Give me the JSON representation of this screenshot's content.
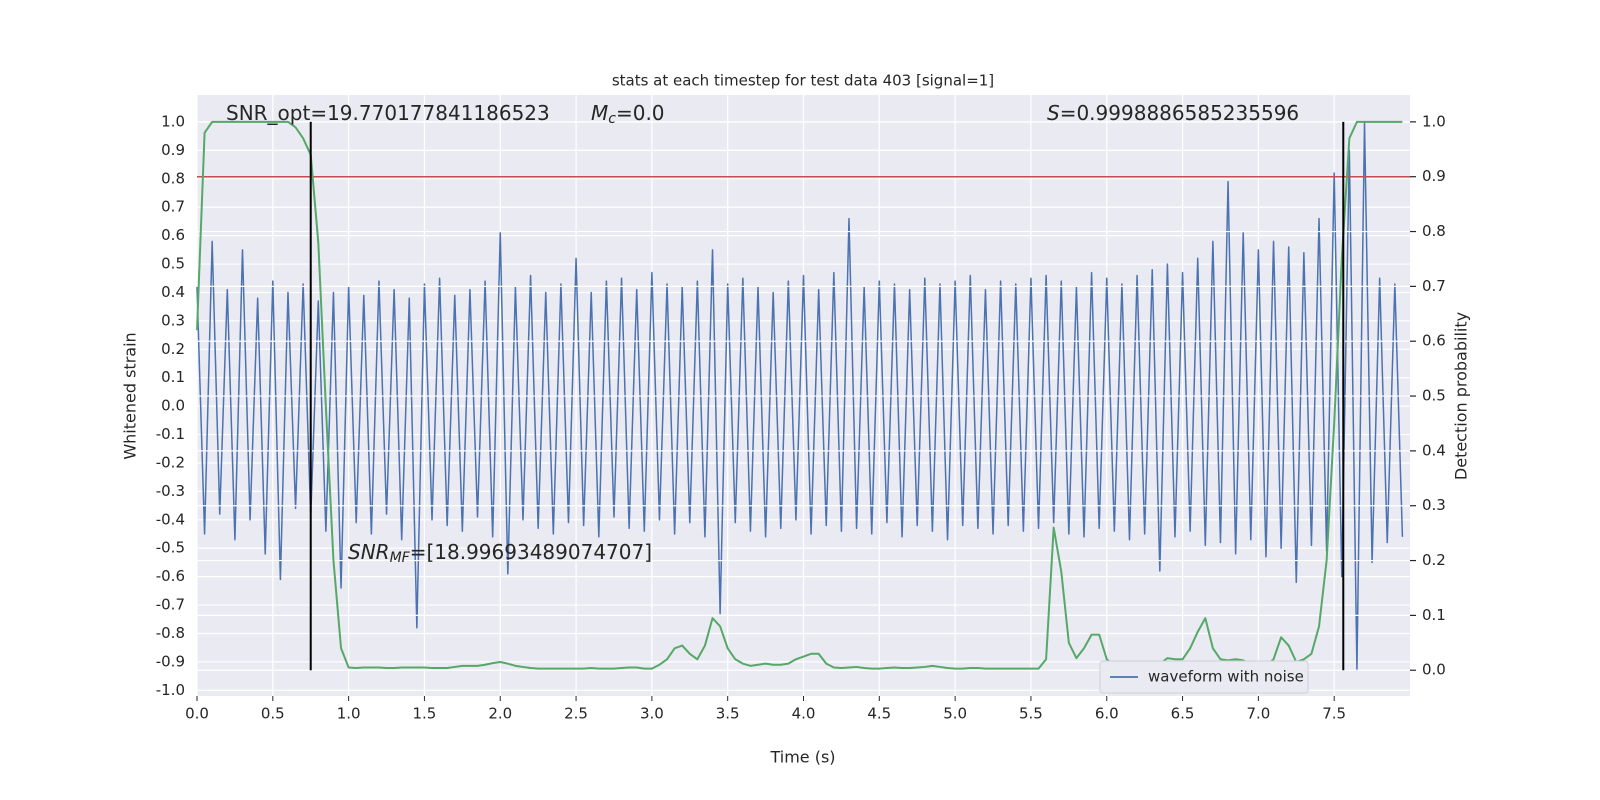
{
  "chart_data": {
    "type": "line",
    "title": "stats at each timestep for test data 403 [signal=1]",
    "xlabel": "Time (s)",
    "ylabel": "Whitened strain",
    "y2label": "Detection probability",
    "xlim": [
      0,
      8.0
    ],
    "ylim": [
      -1.02,
      1.095
    ],
    "y2lim": [
      -0.047,
      1.049
    ],
    "xticks": [
      {
        "value": 0,
        "label": "0.0"
      },
      0.5,
      {
        "value": 1,
        "label": "1.0"
      },
      1.5,
      {
        "value": 2,
        "label": "2.0"
      },
      2.5,
      {
        "value": 3,
        "label": "3.0"
      },
      3.5,
      {
        "value": 4,
        "label": "4.0"
      },
      4.5,
      {
        "value": 5,
        "label": "5.0"
      },
      5.5,
      {
        "value": 6,
        "label": "6.0"
      },
      6.5,
      {
        "value": 7,
        "label": "7.0"
      },
      7.5
    ],
    "yticks": [
      {
        "value": -1,
        "label": "-1.0"
      },
      -0.9,
      -0.8,
      -0.7,
      -0.6,
      -0.5,
      -0.4,
      -0.3,
      -0.2,
      -0.1,
      {
        "value": 0,
        "label": "0.0"
      },
      0.1,
      0.2,
      0.3,
      0.4,
      0.5,
      0.6,
      0.7,
      0.8,
      0.9,
      {
        "value": 1,
        "label": "1.0"
      }
    ],
    "y2ticks": [
      {
        "value": 0,
        "label": "0.0"
      },
      0.1,
      0.2,
      0.3,
      0.4,
      0.5,
      0.6,
      0.7,
      0.8,
      0.9,
      {
        "value": 1,
        "label": "1.0"
      }
    ],
    "grid": true,
    "legend": "lower right",
    "threshold": 0.9,
    "threshold_color": "#c44e52",
    "vlines": [
      0.75,
      7.56
    ],
    "vline_range": [
      0,
      1
    ],
    "annotations": [
      {
        "text": "SNR_opt=19.770177841186523"
      },
      {
        "symbol": "M",
        "sub": "c",
        "text": "=0.0"
      },
      {
        "symbol": "S",
        "text": "=0.9998886585235596"
      },
      {
        "symbol": "SNR",
        "sub": "MF",
        "text": "=[18.99693489074707]"
      }
    ],
    "x": [
      0,
      0.05,
      0.1,
      0.15,
      0.2,
      0.25,
      0.3,
      0.35,
      0.4,
      0.45,
      0.5,
      0.55,
      0.6,
      0.65,
      0.7,
      0.75,
      0.8,
      0.85,
      0.9,
      0.95,
      1,
      1.05,
      1.1,
      1.15,
      1.2,
      1.25,
      1.3,
      1.35,
      1.4,
      1.45,
      1.5,
      1.55,
      1.6,
      1.65,
      1.7,
      1.75,
      1.8,
      1.85,
      1.9,
      1.95,
      2,
      2.05,
      2.1,
      2.15,
      2.2,
      2.25,
      2.3,
      2.35,
      2.4,
      2.45,
      2.5,
      2.55,
      2.6,
      2.65,
      2.7,
      2.75,
      2.8,
      2.85,
      2.9,
      2.95,
      3,
      3.05,
      3.1,
      3.15,
      3.2,
      3.25,
      3.3,
      3.35,
      3.4,
      3.45,
      3.5,
      3.55,
      3.6,
      3.65,
      3.7,
      3.75,
      3.8,
      3.85,
      3.9,
      3.95,
      4,
      4.05,
      4.1,
      4.15,
      4.2,
      4.25,
      4.3,
      4.35,
      4.4,
      4.45,
      4.5,
      4.55,
      4.6,
      4.65,
      4.7,
      4.75,
      4.8,
      4.85,
      4.9,
      4.95,
      5,
      5.05,
      5.1,
      5.15,
      5.2,
      5.25,
      5.3,
      5.35,
      5.4,
      5.45,
      5.5,
      5.55,
      5.6,
      5.65,
      5.7,
      5.75,
      5.8,
      5.85,
      5.9,
      5.95,
      6,
      6.05,
      6.1,
      6.15,
      6.2,
      6.25,
      6.3,
      6.35,
      6.4,
      6.45,
      6.5,
      6.55,
      6.6,
      6.65,
      6.7,
      6.75,
      6.8,
      6.85,
      6.9,
      6.95,
      7,
      7.05,
      7.1,
      7.15,
      7.2,
      7.25,
      7.3,
      7.35,
      7.4,
      7.45,
      7.5,
      7.55,
      7.6,
      7.65,
      7.7,
      7.75,
      7.8,
      7.85,
      7.9,
      7.95
    ],
    "series": [
      {
        "name": "waveform with noise",
        "color": "#4c72b0",
        "values": [
          0.42,
          -0.45,
          0.58,
          -0.38,
          0.41,
          -0.47,
          0.55,
          -0.4,
          0.38,
          -0.52,
          0.44,
          -0.61,
          0.4,
          -0.36,
          0.43,
          -0.39,
          0.37,
          -0.44,
          0.4,
          -0.64,
          0.42,
          -0.41,
          0.39,
          -0.45,
          0.44,
          -0.38,
          0.41,
          -0.47,
          0.38,
          -0.78,
          0.43,
          -0.4,
          0.45,
          -0.42,
          0.39,
          -0.44,
          0.41,
          -0.39,
          0.44,
          -0.46,
          0.61,
          -0.59,
          0.42,
          -0.4,
          0.46,
          -0.43,
          0.4,
          -0.45,
          0.43,
          -0.41,
          0.52,
          -0.42,
          0.4,
          -0.46,
          0.44,
          -0.39,
          0.45,
          -0.43,
          0.41,
          -0.44,
          0.47,
          -0.4,
          0.43,
          -0.45,
          0.42,
          -0.41,
          0.44,
          -0.46,
          0.55,
          -0.73,
          0.43,
          -0.41,
          0.45,
          -0.44,
          0.42,
          -0.46,
          0.4,
          -0.43,
          0.44,
          -0.4,
          0.46,
          -0.45,
          0.41,
          -0.42,
          0.47,
          -0.44,
          0.66,
          -0.43,
          0.42,
          -0.45,
          0.44,
          -0.41,
          0.43,
          -0.46,
          0.41,
          -0.42,
          0.45,
          -0.44,
          0.43,
          -0.47,
          0.44,
          -0.42,
          0.46,
          -0.43,
          0.41,
          -0.45,
          0.44,
          -0.42,
          0.43,
          -0.44,
          0.45,
          -0.43,
          0.46,
          -0.41,
          0.44,
          -0.45,
          0.42,
          -0.46,
          0.47,
          -0.43,
          0.45,
          -0.44,
          0.43,
          -0.47,
          0.46,
          -0.45,
          0.48,
          -0.58,
          0.5,
          -0.46,
          0.47,
          -0.44,
          0.52,
          -0.49,
          0.58,
          -0.48,
          0.79,
          -0.52,
          0.61,
          -0.47,
          0.55,
          -0.53,
          0.58,
          -0.5,
          0.56,
          -0.62,
          0.54,
          -0.49,
          0.66,
          -0.51,
          0.82,
          -0.6,
          0.9,
          -0.93,
          1.0,
          -0.55,
          0.45,
          -0.48,
          0.43,
          -0.46
        ]
      },
      {
        "color": "#55a868",
        "axis": "y2",
        "values": [
          0.62,
          0.98,
          1.0,
          1.0,
          1.0,
          1.0,
          1.0,
          1.0,
          1.0,
          1.0,
          1.0,
          1.0,
          1.0,
          0.99,
          0.97,
          0.94,
          0.78,
          0.48,
          0.2,
          0.04,
          0.005,
          0.004,
          0.005,
          0.005,
          0.005,
          0.004,
          0.004,
          0.005,
          0.005,
          0.005,
          0.005,
          0.004,
          0.004,
          0.004,
          0.006,
          0.008,
          0.008,
          0.008,
          0.01,
          0.013,
          0.015,
          0.012,
          0.008,
          0.006,
          0.004,
          0.003,
          0.003,
          0.003,
          0.003,
          0.003,
          0.003,
          0.003,
          0.004,
          0.003,
          0.003,
          0.003,
          0.004,
          0.005,
          0.005,
          0.003,
          0.003,
          0.01,
          0.02,
          0.04,
          0.045,
          0.03,
          0.02,
          0.045,
          0.095,
          0.08,
          0.04,
          0.02,
          0.012,
          0.008,
          0.01,
          0.012,
          0.01,
          0.01,
          0.012,
          0.02,
          0.025,
          0.03,
          0.03,
          0.012,
          0.005,
          0.004,
          0.005,
          0.006,
          0.004,
          0.003,
          0.003,
          0.004,
          0.005,
          0.004,
          0.004,
          0.005,
          0.006,
          0.008,
          0.006,
          0.004,
          0.003,
          0.003,
          0.004,
          0.004,
          0.003,
          0.003,
          0.003,
          0.003,
          0.003,
          0.003,
          0.003,
          0.003,
          0.02,
          0.26,
          0.18,
          0.05,
          0.022,
          0.04,
          0.065,
          0.065,
          0.02,
          0.007,
          0.007,
          0.007,
          0.007,
          0.007,
          0.007,
          0.012,
          0.022,
          0.02,
          0.02,
          0.04,
          0.07,
          0.095,
          0.04,
          0.02,
          0.018,
          0.02,
          0.018,
          0.01,
          0.008,
          0.008,
          0.02,
          0.06,
          0.045,
          0.015,
          0.02,
          0.03,
          0.08,
          0.2,
          0.45,
          0.75,
          0.97,
          1.0,
          1.0,
          1.0,
          1.0,
          1.0,
          1.0,
          1.0
        ]
      }
    ]
  }
}
